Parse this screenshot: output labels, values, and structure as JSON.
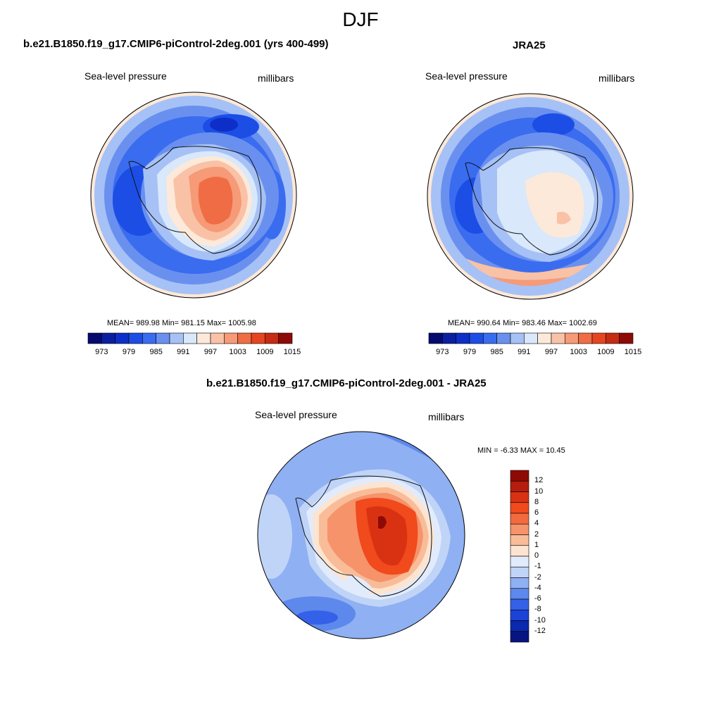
{
  "figure_title": "DJF",
  "panels": {
    "model": {
      "title": "b.e21.B1850.f19_g17.CMIP6-piControl-2deg.001 (yrs 400-499)",
      "left_label": "Sea-level pressure",
      "right_label": "millibars",
      "stats": "MEAN= 989.98  Min= 981.15  Max= 1005.98"
    },
    "obs": {
      "title": "JRA25",
      "left_label": "Sea-level pressure",
      "right_label": "millibars",
      "stats": "MEAN= 990.64  Min= 983.46  Max= 1002.69"
    },
    "diff": {
      "title": "b.e21.B1850.f19_g17.CMIP6-piControl-2deg.001 - JRA25",
      "left_label": "Sea-level pressure",
      "right_label": "millibars",
      "stats": "MIN =  -6.33 MAX =  10.45"
    }
  },
  "colorbars": {
    "slp": {
      "labels": [
        "973",
        "979",
        "985",
        "991",
        "997",
        "1003",
        "1009",
        "1015"
      ],
      "colors": [
        "#050a6e",
        "#0a1fa0",
        "#0d2fc8",
        "#1c4ee6",
        "#3a6cf0",
        "#6a90ef",
        "#a6c1f5",
        "#d9e8fb",
        "#fde9d9",
        "#f9c2a6",
        "#f69a77",
        "#f06c45",
        "#e5461f",
        "#c62c13",
        "#8e0a06"
      ]
    },
    "diff": {
      "labels": [
        "12",
        "10",
        "8",
        "6",
        "4",
        "2",
        "1",
        "0",
        "-1",
        "-2",
        "-4",
        "-6",
        "-8",
        "-10",
        "-12"
      ],
      "colors": [
        "#8e0a06",
        "#b51d0e",
        "#d93212",
        "#f04a1d",
        "#f26b3f",
        "#f6936a",
        "#f9bc99",
        "#fde4d0",
        "#e1ebfb",
        "#c0d4f7",
        "#8fb0f2",
        "#5d88ec",
        "#3461e8",
        "#1c43d6",
        "#0b28b0",
        "#061580"
      ]
    }
  }
}
